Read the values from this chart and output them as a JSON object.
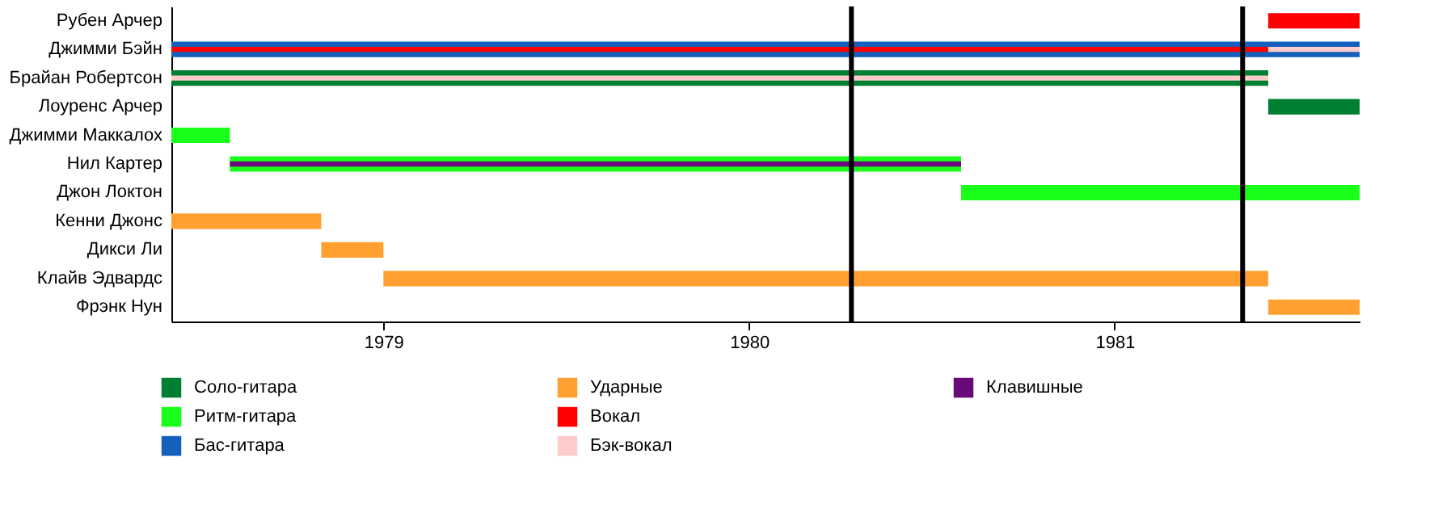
{
  "chart_data": {
    "type": "bar",
    "orientation": "horizontal",
    "categories": [
      "Рубен Арчер",
      "Джимми Бэйн",
      "Брайан Робертсон",
      "Лоуренс Арчер",
      "Джимми Маккалох",
      "Нил Картер",
      "Джон Локтон",
      "Кенни Джонс",
      "Дикси Ли",
      "Клайв Эдвардс",
      "Фрэнк Нун"
    ],
    "series": [
      {
        "name": "Соло-гитара",
        "color": "#007f33",
        "base": [
          null,
          null,
          1978.42,
          1981.42,
          null,
          null,
          null,
          null,
          null,
          null,
          null
        ],
        "values": [
          null,
          null,
          3.0,
          0.25,
          null,
          null,
          null,
          null,
          null,
          null,
          null
        ]
      },
      {
        "name": "Ритм-гитара",
        "color": "#1aff1a",
        "base": [
          null,
          null,
          null,
          null,
          1978.42,
          1978.58,
          1980.58,
          null,
          null,
          null,
          null
        ],
        "values": [
          null,
          null,
          null,
          null,
          0.16,
          2.0,
          1.09,
          null,
          null,
          null,
          null
        ]
      },
      {
        "name": "Бас-гитара",
        "color": "#1560bd",
        "base": [
          null,
          1978.42,
          null,
          null,
          null,
          null,
          null,
          null,
          null,
          null,
          null
        ],
        "values": [
          null,
          3.25,
          null,
          null,
          null,
          null,
          null,
          null,
          null,
          null,
          null
        ]
      },
      {
        "name": "Ударные",
        "color": "#ffa030",
        "base": [
          null,
          null,
          null,
          null,
          null,
          null,
          null,
          1978.42,
          1978.83,
          1979.0,
          1981.42
        ],
        "values": [
          null,
          null,
          null,
          null,
          null,
          null,
          null,
          0.41,
          0.17,
          2.42,
          0.25
        ]
      },
      {
        "name": "Вокал",
        "color": "#ff0000",
        "base": [
          1981.42,
          1978.42,
          null,
          null,
          null,
          null,
          null,
          null,
          null,
          null,
          null
        ],
        "values": [
          0.25,
          3.0,
          null,
          null,
          null,
          null,
          null,
          null,
          null,
          null,
          null
        ]
      },
      {
        "name": "Бэк-вокал",
        "color": "#ffcccc",
        "base": [
          null,
          1981.42,
          1978.42,
          null,
          null,
          null,
          null,
          null,
          null,
          null,
          null
        ],
        "values": [
          null,
          0.25,
          3.0,
          null,
          null,
          null,
          null,
          null,
          null,
          null,
          null
        ]
      },
      {
        "name": "Клавишные",
        "color": "#6a0a7a",
        "base": [
          null,
          null,
          null,
          null,
          null,
          1978.58,
          null,
          null,
          null,
          null,
          null
        ],
        "values": [
          null,
          null,
          null,
          null,
          null,
          2.0,
          null,
          null,
          null,
          null,
          null
        ]
      }
    ],
    "xlim": [
      1978.42,
      1981.67
    ],
    "xticks": [
      1979,
      1980,
      1981
    ],
    "ref_lines": [
      {
        "axis": "x",
        "value": 1980.28,
        "color": "#000000"
      },
      {
        "axis": "x",
        "value": 1981.35,
        "color": "#000000"
      }
    ],
    "grid": false,
    "legend": "bottom"
  }
}
